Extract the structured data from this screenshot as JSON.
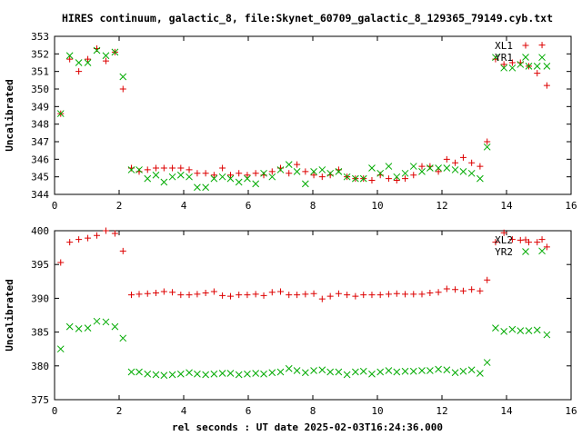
{
  "title": "HIRES continuum, galactic_8, file:Skynet_60709_galactic_8_129365_79149.cyb.txt",
  "xlabel": "rel seconds : UT date 2025-02-03T16:24:36.000",
  "colors": {
    "red": "#dd0000",
    "green": "#00aa00",
    "axis": "#000000"
  },
  "chart_data": [
    {
      "type": "scatter",
      "ylabel": "Uncalibrated",
      "xlim": [
        0,
        16
      ],
      "ylim": [
        344,
        353
      ],
      "xticks": [
        0,
        2,
        4,
        6,
        8,
        10,
        12,
        14,
        16
      ],
      "yticks": [
        344,
        345,
        346,
        347,
        348,
        349,
        350,
        351,
        352,
        353
      ],
      "legend_position": "top-right",
      "series": [
        {
          "name": "XL1",
          "color": "#dd0000",
          "marker": "plus",
          "x": [
            0.19,
            0.47,
            0.75,
            1.03,
            1.31,
            1.59,
            1.87,
            2.12,
            2.38,
            2.62,
            2.88,
            3.14,
            3.39,
            3.65,
            3.91,
            4.17,
            4.42,
            4.68,
            4.94,
            5.2,
            5.45,
            5.71,
            5.97,
            6.23,
            6.48,
            6.74,
            7.0,
            7.26,
            7.51,
            7.77,
            8.03,
            8.29,
            8.54,
            8.8,
            9.06,
            9.32,
            9.57,
            9.83,
            10.09,
            10.35,
            10.6,
            10.86,
            11.12,
            11.38,
            11.63,
            11.89,
            12.15,
            12.41,
            12.66,
            12.92,
            13.18,
            13.4,
            13.66,
            13.92,
            14.18,
            14.43,
            14.69,
            14.95,
            15.1,
            15.25
          ],
          "y": [
            348.6,
            351.7,
            351.0,
            351.7,
            352.3,
            351.6,
            352.1,
            350.0,
            345.5,
            345.3,
            345.4,
            345.5,
            345.5,
            345.5,
            345.5,
            345.4,
            345.2,
            345.2,
            345.1,
            345.5,
            345.1,
            345.2,
            345.1,
            345.2,
            345.1,
            345.3,
            345.5,
            345.2,
            345.7,
            345.3,
            345.1,
            345.0,
            345.1,
            345.4,
            345.0,
            344.9,
            344.9,
            344.8,
            345.1,
            344.9,
            344.8,
            344.9,
            345.1,
            345.6,
            345.6,
            345.3,
            346.0,
            345.8,
            346.1,
            345.8,
            345.6,
            347.0,
            351.7,
            351.4,
            351.5,
            351.5,
            351.3,
            350.9,
            352.5,
            350.2
          ]
        },
        {
          "name": "YR1",
          "color": "#00aa00",
          "marker": "cross",
          "x": [
            0.19,
            0.47,
            0.75,
            1.03,
            1.31,
            1.59,
            1.87,
            2.12,
            2.38,
            2.62,
            2.88,
            3.14,
            3.39,
            3.65,
            3.91,
            4.17,
            4.42,
            4.68,
            4.94,
            5.2,
            5.45,
            5.71,
            5.97,
            6.23,
            6.48,
            6.74,
            7.0,
            7.26,
            7.51,
            7.77,
            8.03,
            8.29,
            8.54,
            8.8,
            9.06,
            9.32,
            9.57,
            9.83,
            10.09,
            10.35,
            10.6,
            10.86,
            11.12,
            11.38,
            11.63,
            11.89,
            12.15,
            12.41,
            12.66,
            12.92,
            13.18,
            13.4,
            13.66,
            13.92,
            14.18,
            14.43,
            14.69,
            14.95,
            15.1,
            15.25
          ],
          "y": [
            348.6,
            351.9,
            351.5,
            351.5,
            352.2,
            351.9,
            352.1,
            350.7,
            345.4,
            345.4,
            344.9,
            345.1,
            344.7,
            345.0,
            345.1,
            345.0,
            344.4,
            344.4,
            344.9,
            345.0,
            344.9,
            344.7,
            344.9,
            344.6,
            345.2,
            345.0,
            345.4,
            345.7,
            345.3,
            344.6,
            345.3,
            345.4,
            345.2,
            345.3,
            345.0,
            344.9,
            344.9,
            345.5,
            345.2,
            345.6,
            345.0,
            345.2,
            345.6,
            345.3,
            345.5,
            345.5,
            345.5,
            345.4,
            345.3,
            345.2,
            344.9,
            346.7,
            351.8,
            351.2,
            351.2,
            351.4,
            351.3,
            351.3,
            351.8,
            351.3
          ]
        }
      ]
    },
    {
      "type": "scatter",
      "ylabel": "Uncalibrated",
      "xlim": [
        0,
        16
      ],
      "ylim": [
        375,
        400
      ],
      "xticks": [
        0,
        2,
        4,
        6,
        8,
        10,
        12,
        14,
        16
      ],
      "yticks": [
        375,
        380,
        385,
        390,
        395,
        400
      ],
      "legend_position": "top-right",
      "series": [
        {
          "name": "XL2",
          "color": "#dd0000",
          "marker": "plus",
          "x": [
            0.19,
            0.47,
            0.75,
            1.03,
            1.31,
            1.59,
            1.87,
            2.12,
            2.38,
            2.62,
            2.88,
            3.14,
            3.39,
            3.65,
            3.91,
            4.17,
            4.42,
            4.68,
            4.94,
            5.2,
            5.45,
            5.71,
            5.97,
            6.23,
            6.48,
            6.74,
            7.0,
            7.26,
            7.51,
            7.77,
            8.03,
            8.29,
            8.54,
            8.8,
            9.06,
            9.32,
            9.57,
            9.83,
            10.09,
            10.35,
            10.6,
            10.86,
            11.12,
            11.38,
            11.63,
            11.89,
            12.15,
            12.41,
            12.66,
            12.92,
            13.18,
            13.4,
            13.66,
            13.92,
            14.18,
            14.43,
            14.69,
            14.95,
            15.1,
            15.25
          ],
          "y": [
            395.3,
            398.3,
            398.7,
            398.9,
            399.3,
            400.0,
            399.6,
            397.0,
            390.5,
            390.6,
            390.7,
            390.8,
            391.0,
            390.9,
            390.5,
            390.5,
            390.6,
            390.8,
            391.0,
            390.4,
            390.3,
            390.5,
            390.5,
            390.6,
            390.4,
            390.9,
            391.0,
            390.5,
            390.5,
            390.6,
            390.7,
            389.9,
            390.3,
            390.7,
            390.5,
            390.3,
            390.5,
            390.5,
            390.5,
            390.6,
            390.7,
            390.6,
            390.6,
            390.6,
            390.8,
            390.9,
            391.4,
            391.3,
            391.1,
            391.3,
            391.1,
            392.7,
            398.3,
            399.7,
            398.7,
            398.6,
            398.3,
            398.3,
            398.7,
            397.6
          ]
        },
        {
          "name": "YR2",
          "color": "#00aa00",
          "marker": "cross",
          "x": [
            0.19,
            0.47,
            0.75,
            1.03,
            1.31,
            1.59,
            1.87,
            2.12,
            2.38,
            2.62,
            2.88,
            3.14,
            3.39,
            3.65,
            3.91,
            4.17,
            4.42,
            4.68,
            4.94,
            5.2,
            5.45,
            5.71,
            5.97,
            6.23,
            6.48,
            6.74,
            7.0,
            7.26,
            7.51,
            7.77,
            8.03,
            8.29,
            8.54,
            8.8,
            9.06,
            9.32,
            9.57,
            9.83,
            10.09,
            10.35,
            10.6,
            10.86,
            11.12,
            11.38,
            11.63,
            11.89,
            12.15,
            12.41,
            12.66,
            12.92,
            13.18,
            13.4,
            13.66,
            13.92,
            14.18,
            14.43,
            14.69,
            14.95,
            15.1,
            15.25
          ],
          "y": [
            382.5,
            385.8,
            385.5,
            385.6,
            386.6,
            386.5,
            385.8,
            384.1,
            379.1,
            379.1,
            378.8,
            378.7,
            378.6,
            378.7,
            378.8,
            379.0,
            378.8,
            378.7,
            378.8,
            378.9,
            378.9,
            378.7,
            378.8,
            378.9,
            378.8,
            379.0,
            379.1,
            379.6,
            379.3,
            379.0,
            379.3,
            379.4,
            379.1,
            379.1,
            378.7,
            379.1,
            379.2,
            378.8,
            379.1,
            379.3,
            379.1,
            379.2,
            379.2,
            379.3,
            379.3,
            379.5,
            379.4,
            379.0,
            379.2,
            379.4,
            378.9,
            380.5,
            385.6,
            385.1,
            385.4,
            385.2,
            385.2,
            385.3,
            397.0,
            384.6
          ]
        }
      ]
    }
  ]
}
